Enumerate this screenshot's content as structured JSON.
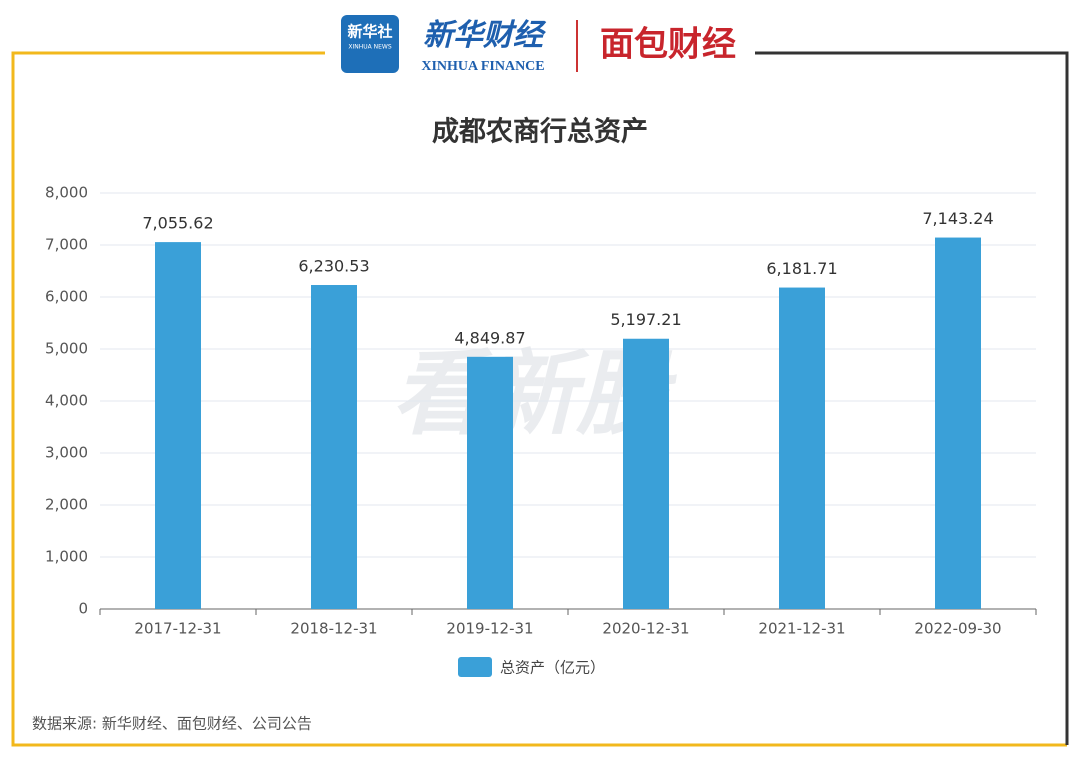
{
  "header": {
    "logo": "新华社",
    "logo_en": "XINHUA NEWS",
    "brand": "新华财经",
    "brand_en": "XINHUA FINANCE",
    "brand2": "面包财经"
  },
  "watermark": "看新股",
  "source": "数据来源: 新华财经、面包财经、公司公告",
  "chart_data": {
    "type": "bar",
    "title": "成都农商行总资产",
    "categories": [
      "2017-12-31",
      "2018-12-31",
      "2019-12-31",
      "2020-12-31",
      "2021-12-31",
      "2022-09-30"
    ],
    "series": [
      {
        "name": "总资产（亿元）",
        "color": "#3aa0d8",
        "values": [
          7055.62,
          6230.53,
          4849.87,
          5197.21,
          6181.71,
          7143.24
        ],
        "value_labels": [
          "7,055.62",
          "6,230.53",
          "4,849.87",
          "5,197.21",
          "6,181.71",
          "7,143.24"
        ]
      }
    ],
    "ylim": [
      0,
      8000
    ],
    "yticks": [
      0,
      {
        "value": 1000,
        "label": "1,000"
      },
      {
        "value": 2000,
        "label": "2,000"
      },
      {
        "value": 3000,
        "label": "3,000"
      },
      {
        "value": 4000,
        "label": "4,000"
      },
      {
        "value": 5000,
        "label": "5,000"
      },
      {
        "value": 6000,
        "label": "6,000"
      },
      {
        "value": 7000,
        "label": "7,000"
      },
      {
        "value": 8000,
        "label": "8,000"
      }
    ],
    "grid": true,
    "legend": "bottom"
  }
}
